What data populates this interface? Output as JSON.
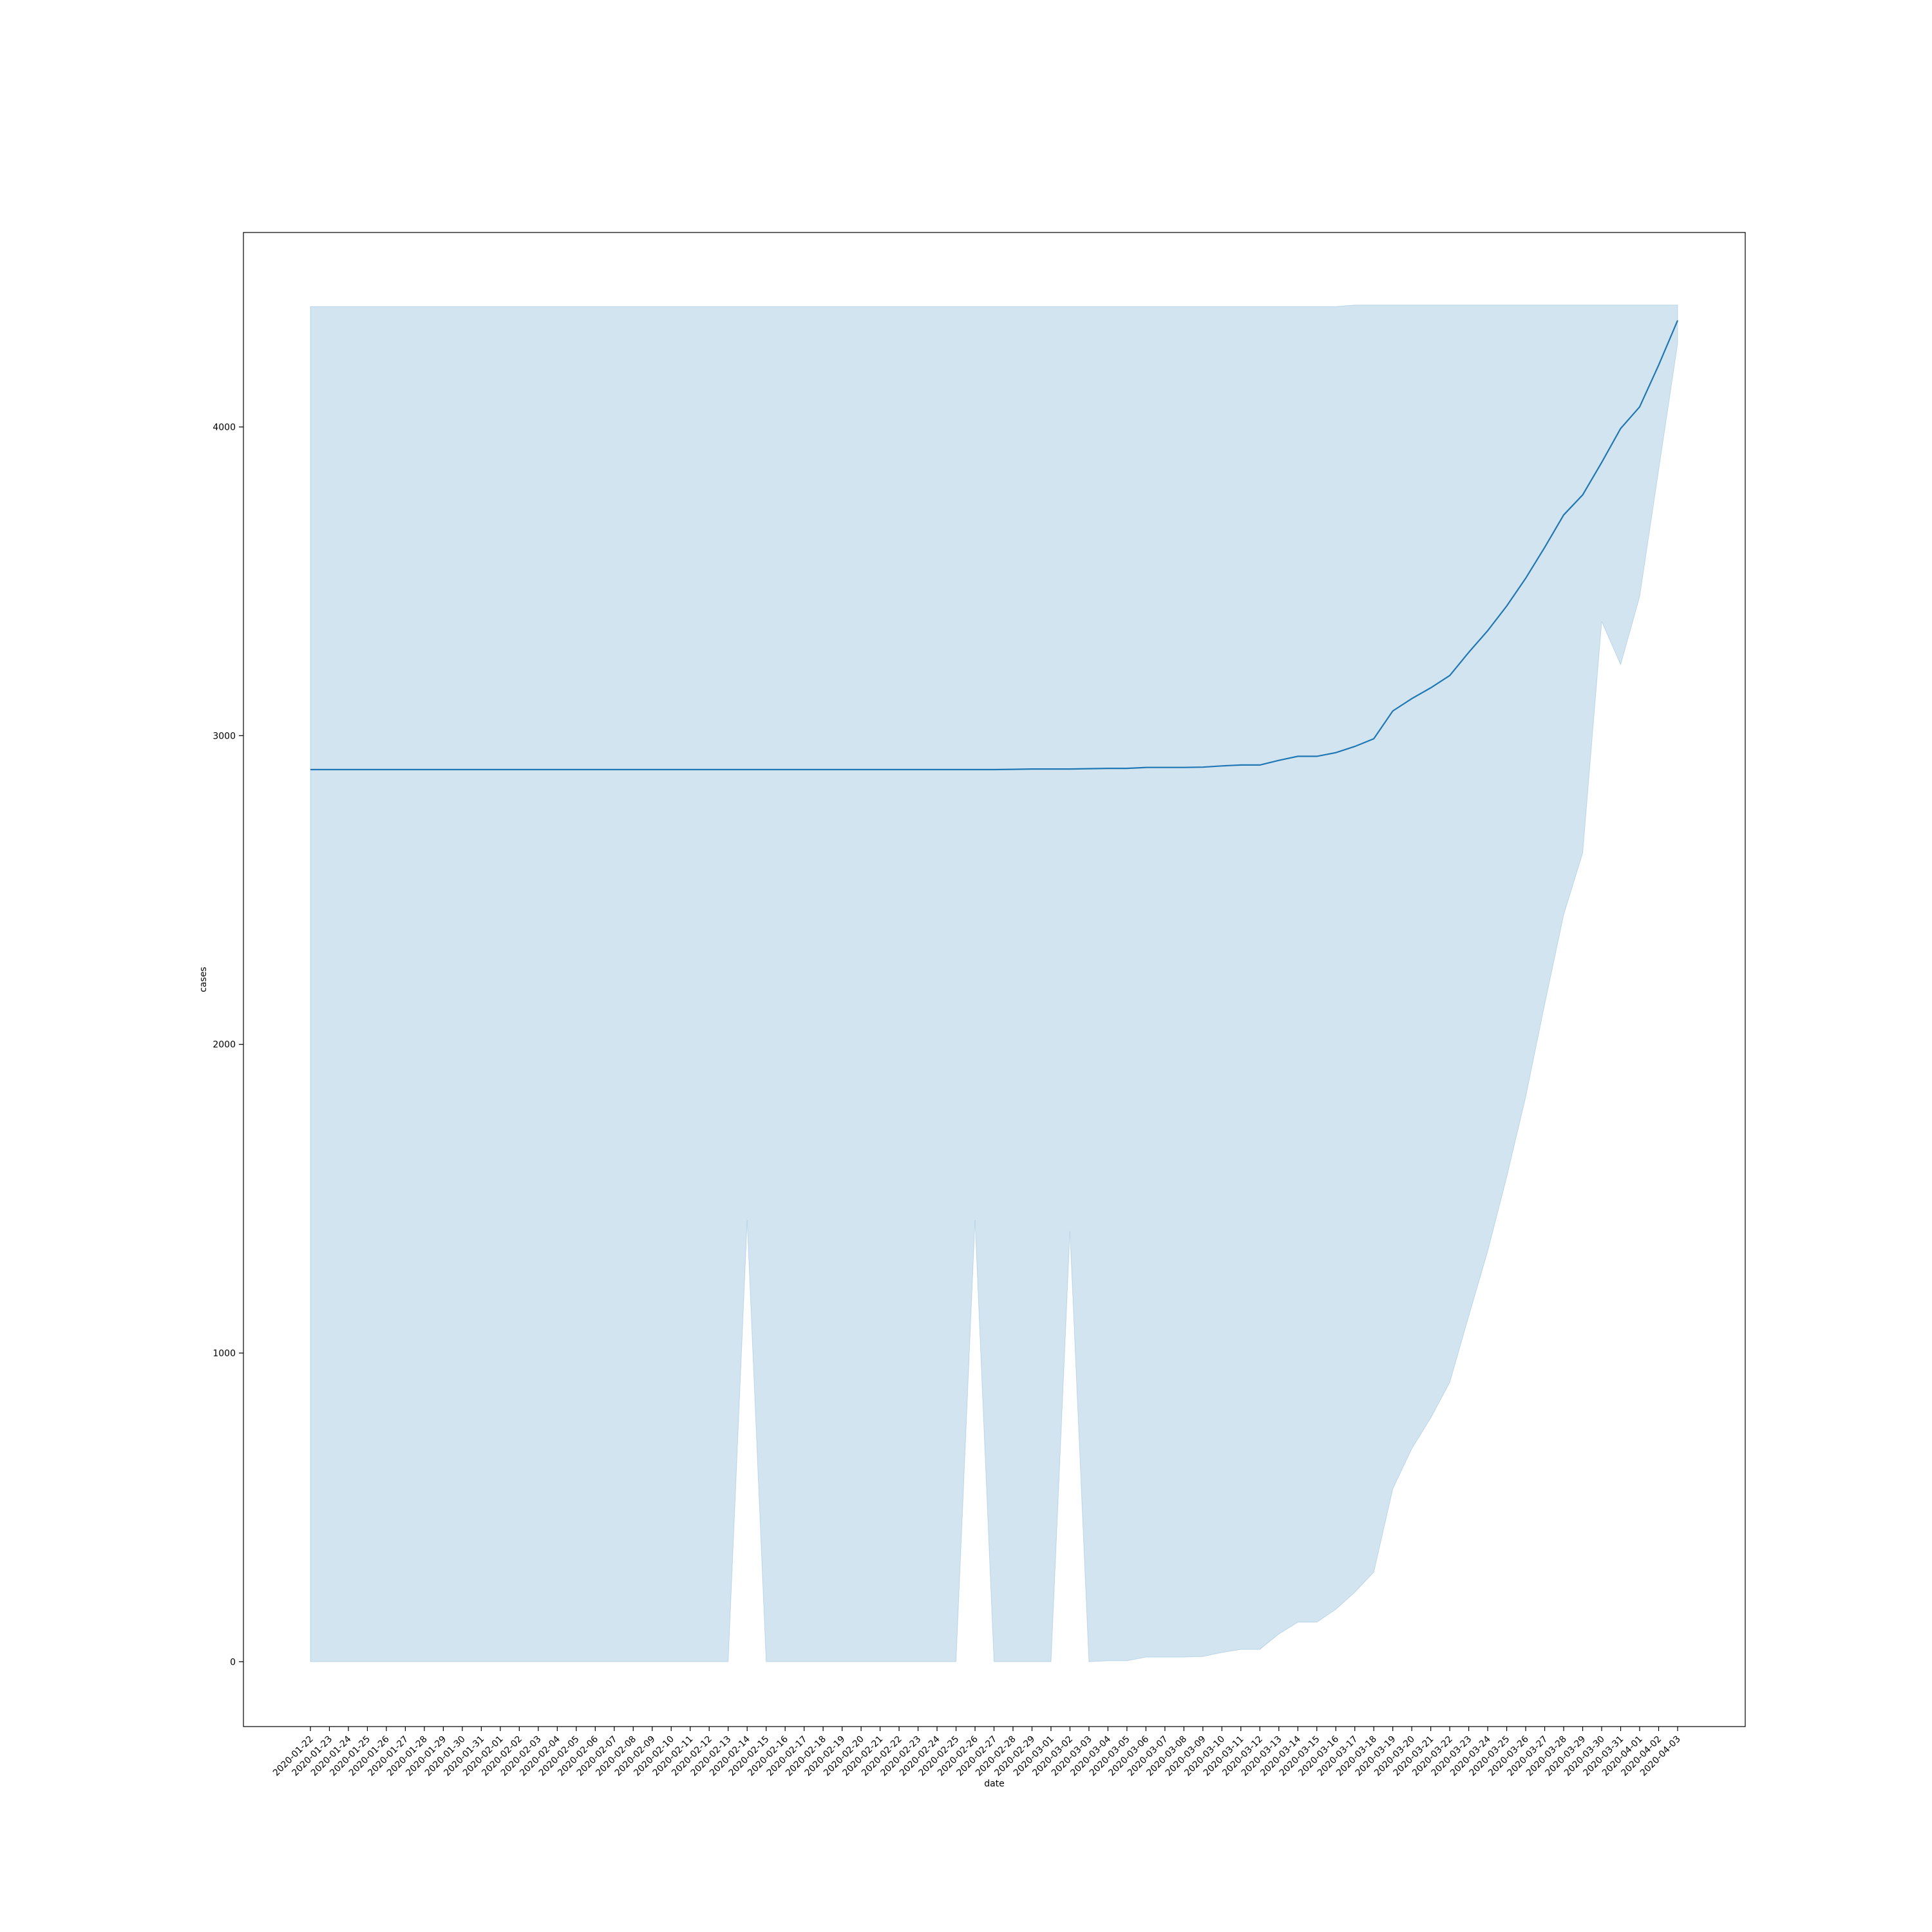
{
  "chart_data": {
    "type": "line",
    "title": "",
    "xlabel": "date",
    "ylabel": "cases",
    "ylim": [
      -210,
      4630
    ],
    "y_ticks": [
      0,
      1000,
      2000,
      3000,
      4000
    ],
    "grid": false,
    "legend": "none",
    "colors": {
      "line": "#1f77b4",
      "band": "#1f77b4"
    },
    "x": [
      "2020-01-22",
      "2020-01-23",
      "2020-01-24",
      "2020-01-25",
      "2020-01-26",
      "2020-01-27",
      "2020-01-28",
      "2020-01-29",
      "2020-01-30",
      "2020-01-31",
      "2020-02-01",
      "2020-02-02",
      "2020-02-03",
      "2020-02-04",
      "2020-02-05",
      "2020-02-06",
      "2020-02-07",
      "2020-02-08",
      "2020-02-09",
      "2020-02-10",
      "2020-02-11",
      "2020-02-12",
      "2020-02-13",
      "2020-02-14",
      "2020-02-15",
      "2020-02-16",
      "2020-02-17",
      "2020-02-18",
      "2020-02-19",
      "2020-02-20",
      "2020-02-21",
      "2020-02-22",
      "2020-02-23",
      "2020-02-24",
      "2020-02-25",
      "2020-02-26",
      "2020-02-27",
      "2020-02-28",
      "2020-02-29",
      "2020-03-01",
      "2020-03-02",
      "2020-03-03",
      "2020-03-04",
      "2020-03-05",
      "2020-03-06",
      "2020-03-07",
      "2020-03-08",
      "2020-03-09",
      "2020-03-10",
      "2020-03-11",
      "2020-03-12",
      "2020-03-13",
      "2020-03-14",
      "2020-03-15",
      "2020-03-16",
      "2020-03-17",
      "2020-03-18",
      "2020-03-19",
      "2020-03-20",
      "2020-03-21",
      "2020-03-22",
      "2020-03-23",
      "2020-03-24",
      "2020-03-25",
      "2020-03-26",
      "2020-03-27",
      "2020-03-28",
      "2020-03-29",
      "2020-03-30",
      "2020-03-31",
      "2020-04-01",
      "2020-04-02",
      "2020-04-03"
    ],
    "series": [
      {
        "values": [
          2890,
          2890,
          2890,
          2890,
          2890,
          2890,
          2890,
          2890,
          2890,
          2890,
          2890,
          2890,
          2890,
          2890,
          2890,
          2890,
          2890,
          2890,
          2890,
          2890,
          2890,
          2890,
          2890,
          2890,
          2890,
          2890,
          2890,
          2890,
          2890,
          2890,
          2890,
          2890,
          2890,
          2890,
          2890,
          2890,
          2890,
          2891,
          2892,
          2892,
          2892,
          2893,
          2894,
          2894,
          2897,
          2897,
          2897,
          2898,
          2902,
          2905,
          2905,
          2920,
          2933,
          2933,
          2945,
          2965,
          2990,
          3080,
          3120,
          3155,
          3195,
          3270,
          3340,
          3420,
          3510,
          3610,
          3715,
          3780,
          3885,
          3995,
          4065,
          4200,
          4345
        ],
        "ci_lower": [
          0,
          0,
          0,
          0,
          0,
          0,
          0,
          0,
          0,
          0,
          0,
          0,
          0,
          0,
          0,
          0,
          0,
          0,
          0,
          0,
          0,
          0,
          0,
          1430,
          0,
          0,
          0,
          0,
          0,
          0,
          0,
          0,
          0,
          0,
          0,
          1430,
          0,
          0,
          0,
          0,
          1395,
          0,
          3,
          3,
          15,
          15,
          15,
          17,
          30,
          40,
          40,
          90,
          128,
          128,
          170,
          225,
          290,
          560,
          690,
          790,
          905,
          1120,
          1330,
          1570,
          1830,
          2130,
          2420,
          2620,
          3370,
          3230,
          3450,
          3860,
          4270
        ],
        "ci_upper": [
          4390,
          4390,
          4390,
          4390,
          4390,
          4390,
          4390,
          4390,
          4390,
          4390,
          4390,
          4390,
          4390,
          4390,
          4390,
          4390,
          4390,
          4390,
          4390,
          4390,
          4390,
          4390,
          4390,
          4390,
          4390,
          4390,
          4390,
          4390,
          4390,
          4390,
          4390,
          4390,
          4390,
          4390,
          4390,
          4390,
          4390,
          4390,
          4390,
          4390,
          4390,
          4390,
          4390,
          4390,
          4390,
          4390,
          4390,
          4390,
          4390,
          4390,
          4390,
          4390,
          4390,
          4390,
          4390,
          4395,
          4395,
          4395,
          4395,
          4395,
          4395,
          4395,
          4395,
          4395,
          4395,
          4395,
          4395,
          4395,
          4395,
          4395,
          4395,
          4395,
          4395
        ]
      }
    ]
  }
}
